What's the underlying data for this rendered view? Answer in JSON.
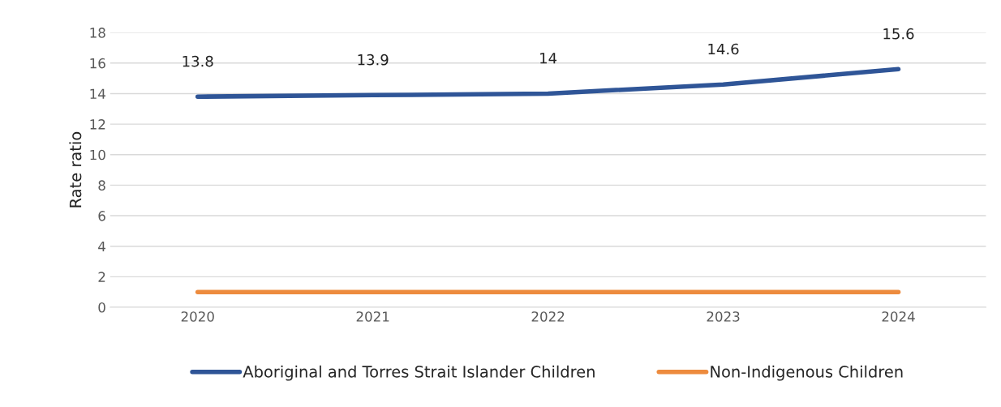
{
  "chart_data": {
    "type": "line",
    "ylabel": "Rate ratio",
    "categories": [
      "2020",
      "2021",
      "2022",
      "2023",
      "2024"
    ],
    "series": [
      {
        "name": "Aboriginal and Torres Strait Islander Children",
        "color": "#2f5597",
        "values": [
          13.8,
          13.9,
          14,
          14.6,
          15.6
        ],
        "value_labels": [
          "13.8",
          "13.9",
          "14",
          "14.6",
          "15.6"
        ]
      },
      {
        "name": "Non-Indigenous Children",
        "color": "#ed8b3e",
        "values": [
          1,
          1,
          1,
          1,
          1
        ]
      }
    ],
    "ylim": [
      0,
      18
    ],
    "yticks": [
      0,
      2,
      4,
      6,
      8,
      10,
      12,
      14,
      16,
      18
    ],
    "grid": "y",
    "legend": "bottom",
    "marker": "none",
    "line_style": "solid"
  }
}
